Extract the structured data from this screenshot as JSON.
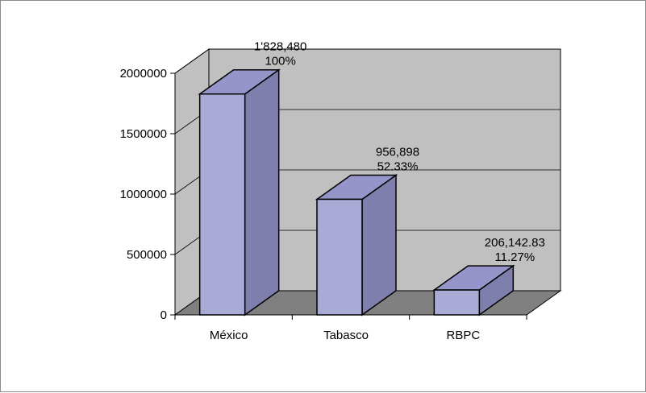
{
  "chart_data": {
    "type": "bar",
    "title": "",
    "xlabel": "",
    "ylabel": "",
    "categories": [
      "México",
      "Tabasco",
      "RBPC"
    ],
    "values": [
      1828480,
      956898,
      206142.83
    ],
    "value_labels": [
      "1'828,480",
      "956,898",
      "206,142.83"
    ],
    "percent_labels": [
      "100%",
      "52.33%",
      "11.27%"
    ],
    "ylim": [
      0,
      2000000
    ],
    "yticks": [
      0,
      500000,
      1000000,
      1500000,
      2000000
    ],
    "ytick_labels": [
      "0",
      "500000",
      "1000000",
      "1500000",
      "2000000"
    ],
    "grid": true,
    "three_d": true,
    "colors": {
      "bar_front": "#aaaad6",
      "bar_side": "#7f7fae",
      "bar_top": "#9595c9",
      "back_wall": "#c0c0c0",
      "side_wall": "#c0c0c0",
      "floor": "#808080",
      "gridline": "#000000",
      "outline": "#000000"
    }
  }
}
